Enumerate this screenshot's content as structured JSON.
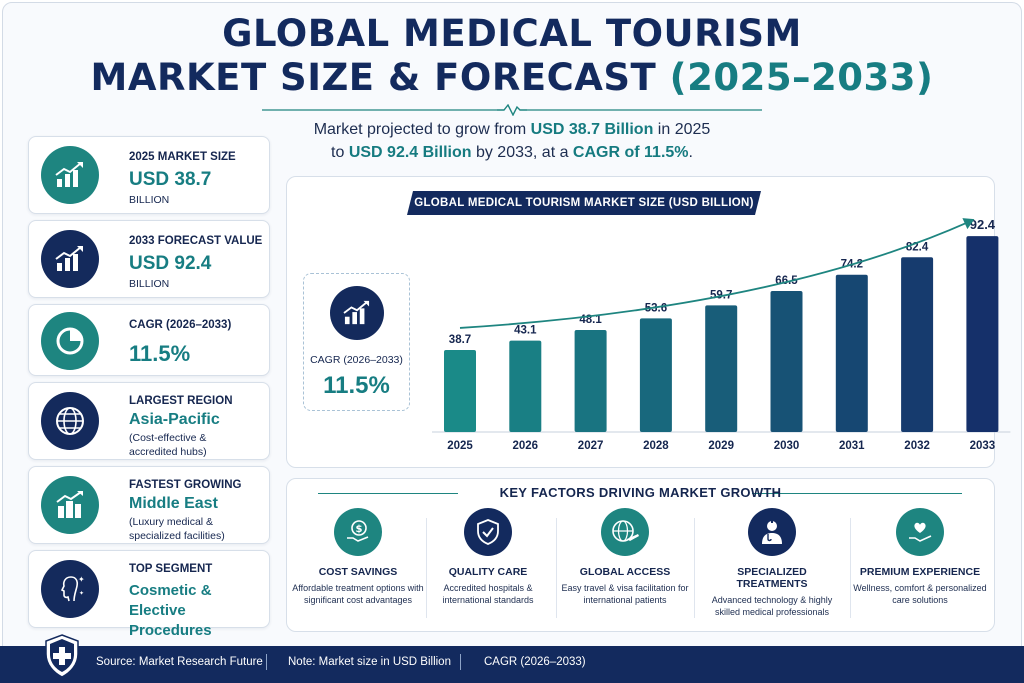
{
  "title": {
    "line1": "GLOBAL MEDICAL TOURISM",
    "line2_main": "MARKET SIZE & FORECAST",
    "line2_years": "(2025–2033)"
  },
  "subtitle": {
    "p1": "Market projected to grow from ",
    "v1": "USD 38.7 Billion",
    "p2": " in 2025",
    "p3": "to ",
    "v2": "USD 92.4 Billion",
    "p4": " by 2033, at a ",
    "v3": "CAGR of 11.5%",
    "p5": "."
  },
  "cards": [
    {
      "label": "2025 MARKET SIZE",
      "value": "USD 38.7",
      "sub": "BILLION",
      "icon": "bar-chart-up-icon",
      "color": "teal"
    },
    {
      "label": "2033 FORECAST VALUE",
      "value": "USD 92.4",
      "sub": "BILLION",
      "icon": "bar-chart-up-icon",
      "color": "navy"
    },
    {
      "label": "CAGR (2026–2033)",
      "value": "11.5%",
      "sub": "",
      "icon": "pie-chart-icon",
      "color": "teal"
    },
    {
      "label": "LARGEST REGION",
      "value": "Asia-Pacific",
      "sub": "(Cost-effective & accredited hubs)",
      "icon": "globe-icon",
      "color": "navy"
    },
    {
      "label": "FASTEST GROWING",
      "value": "Middle East",
      "sub": "(Luxury medical & specialized facilities)",
      "icon": "buildings-growth-icon",
      "color": "teal"
    },
    {
      "label": "TOP SEGMENT",
      "value": "Cosmetic & Elective Procedures",
      "sub": "",
      "icon": "face-sparkle-icon",
      "color": "navy"
    }
  ],
  "cagr_box": {
    "label": "CAGR (2026–2033)",
    "value": "11.5%"
  },
  "chart_data": {
    "type": "bar",
    "title": "GLOBAL MEDICAL TOURISM MARKET SIZE (USD BILLION)",
    "categories": [
      "2025",
      "2026",
      "2027",
      "2028",
      "2029",
      "2030",
      "2031",
      "2032",
      "2033"
    ],
    "values": [
      38.7,
      43.1,
      48.1,
      53.6,
      59.7,
      66.5,
      74.2,
      82.4,
      92.4
    ],
    "value_labels": [
      "38.7",
      "43.1",
      "48.1",
      "53.6",
      "59.7",
      "66.5",
      "74.2",
      "82.4",
      "92.4"
    ],
    "colors": {
      "start": "#1a8a88",
      "end": "#15306a"
    },
    "trend_arrow": true,
    "ylim": [
      0,
      100
    ]
  },
  "factors": {
    "title": "KEY FACTORS DRIVING MARKET GROWTH",
    "items": [
      {
        "title": "COST SAVINGS",
        "desc": "Affordable treatment options with significant cost advantages",
        "icon": "dollar-hand-icon",
        "color": "teal"
      },
      {
        "title": "QUALITY CARE",
        "desc": "Accredited hospitals & international standards",
        "icon": "shield-check-icon",
        "color": "navy"
      },
      {
        "title": "GLOBAL ACCESS",
        "desc": "Easy travel & visa facilitation for international patients",
        "icon": "globe-plane-icon",
        "color": "teal"
      },
      {
        "title": "SPECIALIZED TREATMENTS",
        "desc": "Advanced technology & highly skilled medical professionals",
        "icon": "doctor-icon",
        "color": "navy"
      },
      {
        "title": "PREMIUM EXPERIENCE",
        "desc": "Wellness, comfort & personalized care solutions",
        "icon": "heart-hand-icon",
        "color": "teal"
      }
    ]
  },
  "footer": {
    "source": "Source: Market Research Future",
    "note": "Note: Market size in USD Billion",
    "cagr": "CAGR (2026–2033)"
  },
  "colors": {
    "navy": "#132a5e",
    "teal": "#177d82"
  }
}
